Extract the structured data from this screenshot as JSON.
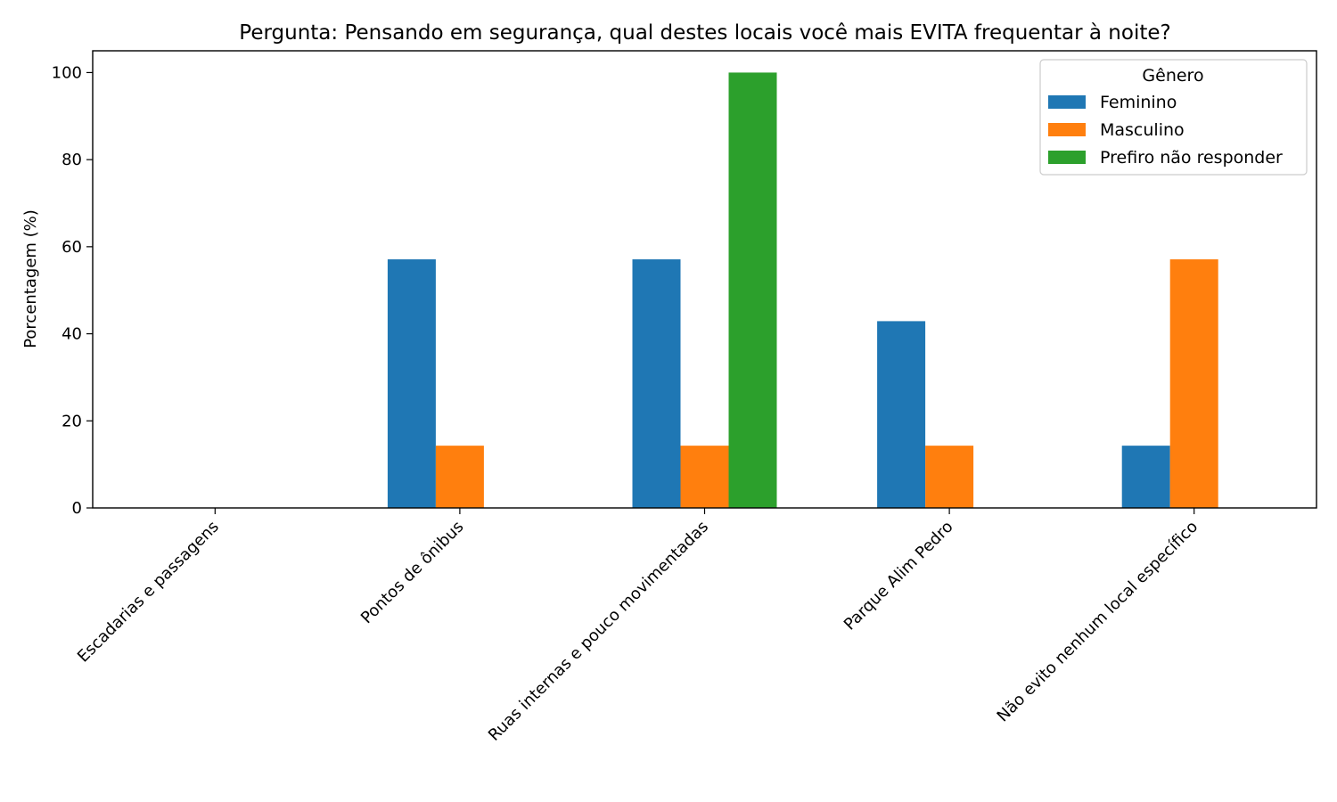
{
  "chart_data": {
    "type": "bar",
    "title": "Pergunta: Pensando em segurança, qual destes locais você mais EVITA frequentar à noite?",
    "xlabel": "",
    "ylabel": "Porcentagem (%)",
    "ylim": [
      0,
      105
    ],
    "yticks": [
      0,
      20,
      40,
      60,
      80,
      100
    ],
    "categories": [
      "Escadarias e passagens",
      "Pontos de ônibus",
      "Ruas internas e pouco movimentadas",
      "Parque Alim Pedro",
      "Não evito nenhum local específico"
    ],
    "series": [
      {
        "name": "Feminino",
        "color": "#1f77b4",
        "values": [
          0,
          57.1,
          57.1,
          42.9,
          14.3
        ]
      },
      {
        "name": "Masculino",
        "color": "#ff7f0e",
        "values": [
          0,
          14.3,
          14.3,
          14.3,
          57.1
        ]
      },
      {
        "name": "Prefiro não responder",
        "color": "#2ca02c",
        "values": [
          0,
          0,
          100,
          0,
          0
        ]
      }
    ],
    "legend": {
      "title": "Gênero",
      "position": "top-right"
    },
    "grid": false
  }
}
